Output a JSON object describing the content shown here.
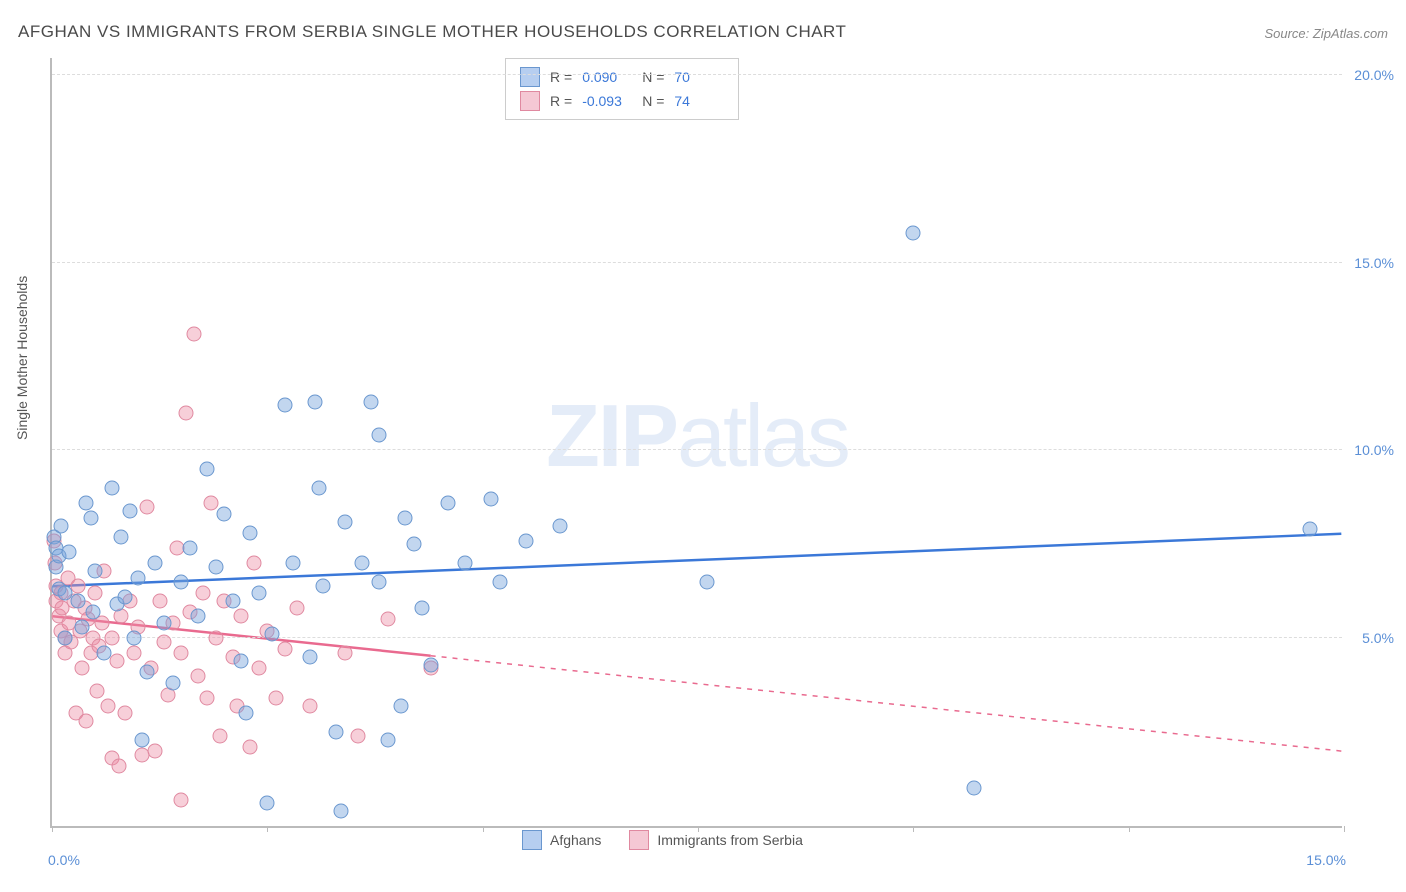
{
  "title": "AFGHAN VS IMMIGRANTS FROM SERBIA SINGLE MOTHER HOUSEHOLDS CORRELATION CHART",
  "source": "Source: ZipAtlas.com",
  "y_axis_title": "Single Mother Households",
  "watermark": {
    "bold": "ZIP",
    "rest": "atlas"
  },
  "chart": {
    "type": "scatter",
    "xlim": [
      0,
      15
    ],
    "ylim": [
      0,
      20.5
    ],
    "x_ticks": [
      0,
      2.5,
      5.0,
      7.5,
      10.0,
      12.5,
      15.0
    ],
    "x_tick_labels_shown": {
      "0": "0.0%",
      "15": "15.0%"
    },
    "y_gridlines": [
      {
        "v": 5.0,
        "label": "5.0%"
      },
      {
        "v": 10.0,
        "label": "10.0%"
      },
      {
        "v": 15.0,
        "label": "15.0%"
      },
      {
        "v": 20.0,
        "label": "20.0%"
      }
    ],
    "background_color": "#ffffff",
    "grid_color": "#dddddd",
    "axis_color": "#bbbbbb",
    "point_radius": 7.5,
    "point_border_width": 1.5
  },
  "series": {
    "afghans": {
      "label": "Afghans",
      "fill_color": "rgba(120,165,220,0.45)",
      "stroke_color": "#6a97cf",
      "swatch_fill": "#b6cef0",
      "swatch_border": "#6a97cf",
      "R": "0.090",
      "N": "70",
      "trend": {
        "x1": 0,
        "y1": 6.4,
        "x2": 15,
        "y2": 7.8,
        "solid_until_x": 15,
        "color": "#3b78d8",
        "width": 2.5
      },
      "points": [
        [
          0.02,
          7.7
        ],
        [
          0.05,
          7.4
        ],
        [
          0.05,
          6.9
        ],
        [
          0.08,
          7.2
        ],
        [
          0.08,
          6.3
        ],
        [
          0.1,
          8.0
        ],
        [
          0.15,
          5.0
        ],
        [
          0.15,
          6.2
        ],
        [
          0.2,
          7.3
        ],
        [
          0.3,
          6.0
        ],
        [
          0.35,
          5.3
        ],
        [
          0.4,
          8.6
        ],
        [
          0.45,
          8.2
        ],
        [
          0.48,
          5.7
        ],
        [
          0.5,
          6.8
        ],
        [
          0.6,
          4.6
        ],
        [
          0.7,
          9.0
        ],
        [
          0.75,
          5.9
        ],
        [
          0.8,
          7.7
        ],
        [
          0.85,
          6.1
        ],
        [
          0.9,
          8.4
        ],
        [
          0.95,
          5.0
        ],
        [
          1.0,
          6.6
        ],
        [
          1.05,
          2.3
        ],
        [
          1.1,
          4.1
        ],
        [
          1.2,
          7.0
        ],
        [
          1.3,
          5.4
        ],
        [
          1.4,
          3.8
        ],
        [
          1.5,
          6.5
        ],
        [
          1.6,
          7.4
        ],
        [
          1.7,
          5.6
        ],
        [
          1.8,
          9.5
        ],
        [
          1.9,
          6.9
        ],
        [
          2.0,
          8.3
        ],
        [
          2.1,
          6.0
        ],
        [
          2.2,
          4.4
        ],
        [
          2.25,
          3.0
        ],
        [
          2.3,
          7.8
        ],
        [
          2.4,
          6.2
        ],
        [
          2.5,
          0.6
        ],
        [
          2.55,
          5.1
        ],
        [
          2.7,
          11.2
        ],
        [
          2.8,
          7.0
        ],
        [
          3.0,
          4.5
        ],
        [
          3.05,
          11.3
        ],
        [
          3.1,
          9.0
        ],
        [
          3.15,
          6.4
        ],
        [
          3.3,
          2.5
        ],
        [
          3.35,
          0.4
        ],
        [
          3.4,
          8.1
        ],
        [
          3.6,
          7.0
        ],
        [
          3.7,
          11.3
        ],
        [
          3.8,
          10.4
        ],
        [
          3.8,
          6.5
        ],
        [
          3.9,
          2.3
        ],
        [
          4.05,
          3.2
        ],
        [
          4.1,
          8.2
        ],
        [
          4.2,
          7.5
        ],
        [
          4.3,
          5.8
        ],
        [
          4.4,
          4.3
        ],
        [
          4.6,
          8.6
        ],
        [
          4.8,
          7.0
        ],
        [
          5.1,
          8.7
        ],
        [
          5.2,
          6.5
        ],
        [
          5.5,
          7.6
        ],
        [
          5.9,
          8.0
        ],
        [
          7.6,
          6.5
        ],
        [
          10.0,
          15.8
        ],
        [
          10.7,
          1.0
        ],
        [
          14.6,
          7.9
        ]
      ]
    },
    "serbia": {
      "label": "Immigrants from Serbia",
      "fill_color": "rgba(235,140,165,0.42)",
      "stroke_color": "#e089a0",
      "swatch_fill": "#f5c8d4",
      "swatch_border": "#e089a0",
      "R": "-0.093",
      "N": "74",
      "trend": {
        "x1": 0,
        "y1": 5.6,
        "x2": 15,
        "y2": 2.0,
        "solid_until_x": 4.4,
        "color": "#e96a8f",
        "width": 2.5
      },
      "points": [
        [
          0.02,
          7.6
        ],
        [
          0.03,
          7.0
        ],
        [
          0.05,
          6.4
        ],
        [
          0.05,
          6.0
        ],
        [
          0.08,
          5.6
        ],
        [
          0.1,
          6.2
        ],
        [
          0.1,
          5.2
        ],
        [
          0.12,
          5.8
        ],
        [
          0.15,
          5.0
        ],
        [
          0.15,
          4.6
        ],
        [
          0.18,
          6.6
        ],
        [
          0.2,
          5.4
        ],
        [
          0.22,
          4.9
        ],
        [
          0.25,
          6.0
        ],
        [
          0.28,
          3.0
        ],
        [
          0.3,
          6.4
        ],
        [
          0.32,
          5.2
        ],
        [
          0.35,
          4.2
        ],
        [
          0.38,
          5.8
        ],
        [
          0.4,
          2.8
        ],
        [
          0.42,
          5.5
        ],
        [
          0.45,
          4.6
        ],
        [
          0.48,
          5.0
        ],
        [
          0.5,
          6.2
        ],
        [
          0.52,
          3.6
        ],
        [
          0.55,
          4.8
        ],
        [
          0.58,
          5.4
        ],
        [
          0.6,
          6.8
        ],
        [
          0.65,
          3.2
        ],
        [
          0.7,
          5.0
        ],
        [
          0.7,
          1.8
        ],
        [
          0.75,
          4.4
        ],
        [
          0.78,
          1.6
        ],
        [
          0.8,
          5.6
        ],
        [
          0.85,
          3.0
        ],
        [
          0.9,
          6.0
        ],
        [
          0.95,
          4.6
        ],
        [
          1.0,
          5.3
        ],
        [
          1.05,
          1.9
        ],
        [
          1.1,
          8.5
        ],
        [
          1.15,
          4.2
        ],
        [
          1.2,
          2.0
        ],
        [
          1.25,
          6.0
        ],
        [
          1.3,
          4.9
        ],
        [
          1.35,
          3.5
        ],
        [
          1.4,
          5.4
        ],
        [
          1.45,
          7.4
        ],
        [
          1.5,
          4.6
        ],
        [
          1.5,
          0.7
        ],
        [
          1.55,
          11.0
        ],
        [
          1.6,
          5.7
        ],
        [
          1.65,
          13.1
        ],
        [
          1.7,
          4.0
        ],
        [
          1.75,
          6.2
        ],
        [
          1.8,
          3.4
        ],
        [
          1.85,
          8.6
        ],
        [
          1.9,
          5.0
        ],
        [
          1.95,
          2.4
        ],
        [
          2.0,
          6.0
        ],
        [
          2.1,
          4.5
        ],
        [
          2.15,
          3.2
        ],
        [
          2.2,
          5.6
        ],
        [
          2.3,
          2.1
        ],
        [
          2.35,
          7.0
        ],
        [
          2.4,
          4.2
        ],
        [
          2.5,
          5.2
        ],
        [
          2.6,
          3.4
        ],
        [
          2.7,
          4.7
        ],
        [
          2.85,
          5.8
        ],
        [
          3.0,
          3.2
        ],
        [
          3.4,
          4.6
        ],
        [
          3.55,
          2.4
        ],
        [
          3.9,
          5.5
        ],
        [
          4.4,
          4.2
        ]
      ]
    }
  },
  "bottom_legend": [
    {
      "key": "afghans"
    },
    {
      "key": "serbia"
    }
  ]
}
